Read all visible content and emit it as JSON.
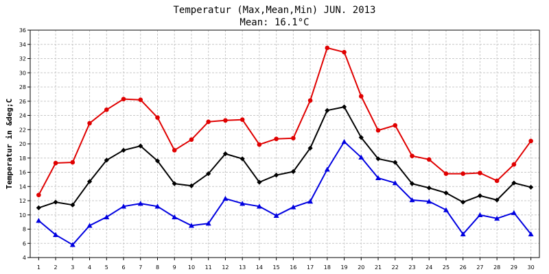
{
  "chart_data": {
    "type": "line",
    "title": "Temperatur (Max,Mean,Min) JUN. 2013",
    "subtitle": "Mean: 16.1°C",
    "ylabel": "Temperatur in &deg;C",
    "xlabel": "",
    "ylim": [
      4,
      36
    ],
    "yticks": [
      4,
      6,
      8,
      10,
      12,
      14,
      16,
      18,
      20,
      22,
      24,
      26,
      28,
      30,
      32,
      34,
      36
    ],
    "grid": true,
    "x": [
      1,
      2,
      3,
      4,
      5,
      6,
      7,
      8,
      9,
      10,
      11,
      12,
      13,
      14,
      15,
      16,
      17,
      18,
      19,
      20,
      21,
      22,
      23,
      24,
      25,
      26,
      27,
      28,
      29,
      30
    ],
    "series": [
      {
        "name": "Max",
        "color": "#e00000",
        "marker": "circle",
        "values": [
          12.8,
          17.3,
          17.4,
          22.9,
          24.8,
          26.3,
          26.2,
          23.7,
          19.1,
          20.6,
          23.1,
          23.3,
          23.4,
          19.9,
          20.7,
          20.8,
          26.1,
          33.5,
          32.9,
          26.7,
          21.9,
          22.6,
          18.3,
          17.8,
          15.8,
          15.8,
          15.9,
          14.8,
          17.1,
          20.4
        ]
      },
      {
        "name": "Mean",
        "color": "#000000",
        "marker": "diamond",
        "values": [
          11.0,
          11.8,
          11.4,
          14.7,
          17.7,
          19.1,
          19.7,
          17.6,
          14.4,
          14.1,
          15.8,
          18.6,
          17.9,
          14.6,
          15.6,
          16.1,
          19.4,
          24.7,
          25.2,
          20.9,
          17.9,
          17.4,
          14.4,
          13.8,
          13.1,
          11.8,
          12.7,
          12.1,
          14.5,
          13.9
        ]
      },
      {
        "name": "Min",
        "color": "#0000e0",
        "marker": "triangle",
        "values": [
          9.2,
          7.2,
          5.8,
          8.5,
          9.7,
          11.2,
          11.6,
          11.2,
          9.7,
          8.5,
          8.8,
          12.3,
          11.6,
          11.2,
          9.9,
          11.1,
          11.9,
          16.4,
          20.3,
          18.1,
          15.2,
          14.5,
          12.1,
          11.9,
          10.7,
          7.3,
          10.0,
          9.5,
          10.3,
          7.3
        ]
      }
    ]
  }
}
